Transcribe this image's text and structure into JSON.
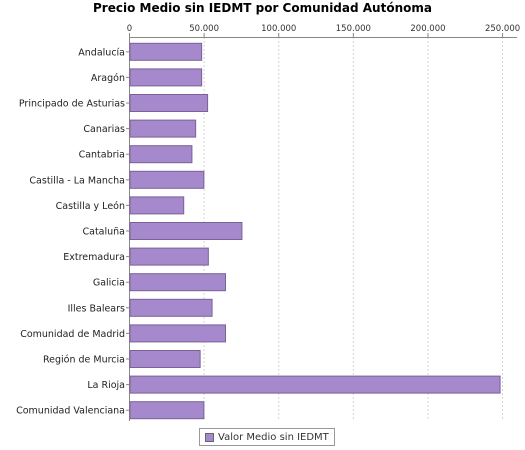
{
  "chart_data": {
    "type": "bar",
    "orientation": "horizontal",
    "title": "Precio Medio sin IEDMT por Comunidad Autónoma",
    "xlabel": "",
    "ylabel": "",
    "categories": [
      "Andalucía",
      "Aragón",
      "Principado de Asturias",
      "Canarias",
      "Cantabria",
      "Castilla - La Mancha",
      "Castilla y León",
      "Cataluña",
      "Extremadura",
      "Galicia",
      "Illes Balears",
      "Comunidad de Madrid",
      "Región de Murcia",
      "La Rioja",
      "Comunidad Valenciana"
    ],
    "series": [
      {
        "name": "Valor Medio sin IEDMT",
        "color": "#a688cc",
        "values": [
          48000,
          48000,
          52000,
          44000,
          41500,
          49500,
          36000,
          75000,
          52500,
          64000,
          55000,
          64000,
          47000,
          248000,
          49500
        ]
      }
    ],
    "xlim": [
      0,
      260000
    ],
    "x_ticks": [
      0,
      50000,
      100000,
      150000,
      200000,
      250000
    ],
    "x_tick_labels": [
      "0",
      "50.000",
      "100.000",
      "150.000",
      "200.000",
      "250.000"
    ],
    "x_axis_position": "top",
    "grid": true,
    "legend_position": "bottom"
  },
  "colors": {
    "bar_fill": "#a688cc",
    "bar_stroke": "#7a6296",
    "grid": "#d4d4d4",
    "axis": "#888888"
  }
}
